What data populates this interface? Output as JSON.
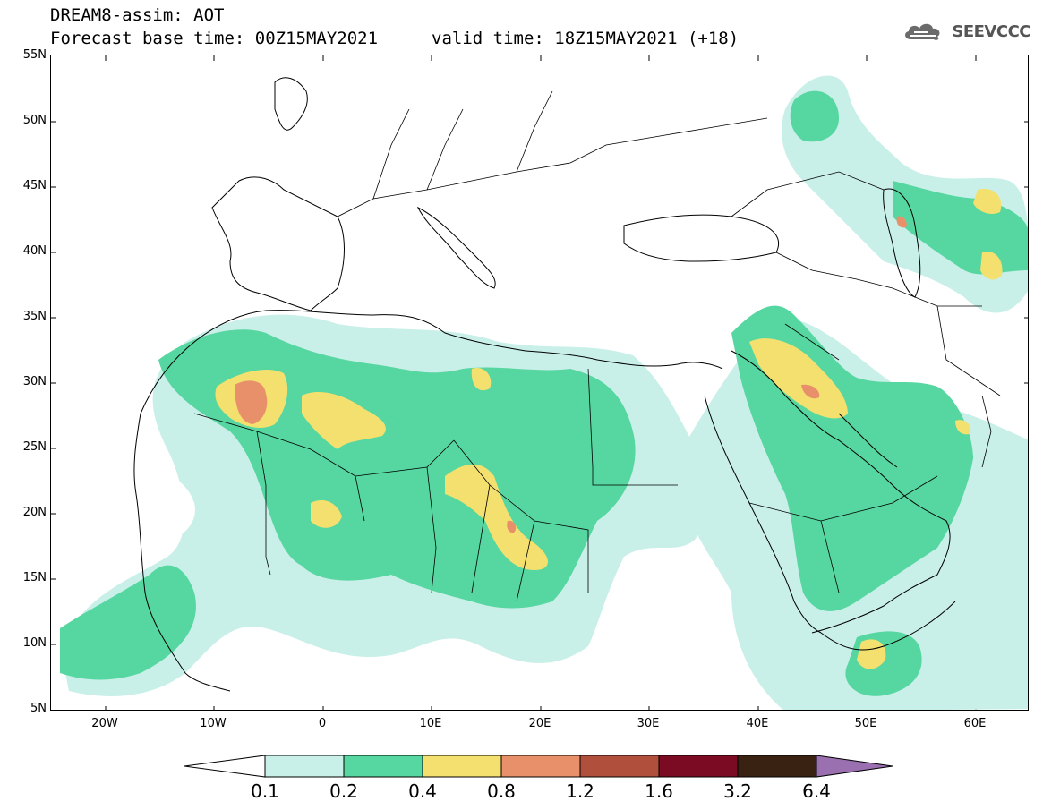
{
  "header": {
    "title": "DREAM8-assim: AOT",
    "base_time": "Forecast base time: 00Z15MAY2021",
    "valid_time": "valid time: 18Z15MAY2021 (+18)"
  },
  "logo": {
    "text": "SEEVCCC",
    "icon": "cloud-icon"
  },
  "map": {
    "region": "North Africa, Europe and Middle East",
    "lat_labels": [
      "55N",
      "50N",
      "45N",
      "40N",
      "35N",
      "30N",
      "25N",
      "20N",
      "15N",
      "10N",
      "5N"
    ],
    "lon_labels": [
      "20W",
      "10W",
      "0",
      "10E",
      "20E",
      "30E",
      "40E",
      "50E",
      "60E"
    ],
    "extent": {
      "lon_min": -25,
      "lon_max": 65,
      "lat_min": 5,
      "lat_max": 55
    }
  },
  "legend": {
    "labels": [
      "0.1",
      "0.2",
      "0.4",
      "0.8",
      "1.2",
      "1.6",
      "3.2",
      "6.4"
    ],
    "colors": [
      "#ffffff",
      "#c8f0e8",
      "#56d6a0",
      "#f3e06e",
      "#e8906a",
      "#b0503c",
      "#7a0b22",
      "#3a2212",
      "#9a70b0"
    ]
  }
}
